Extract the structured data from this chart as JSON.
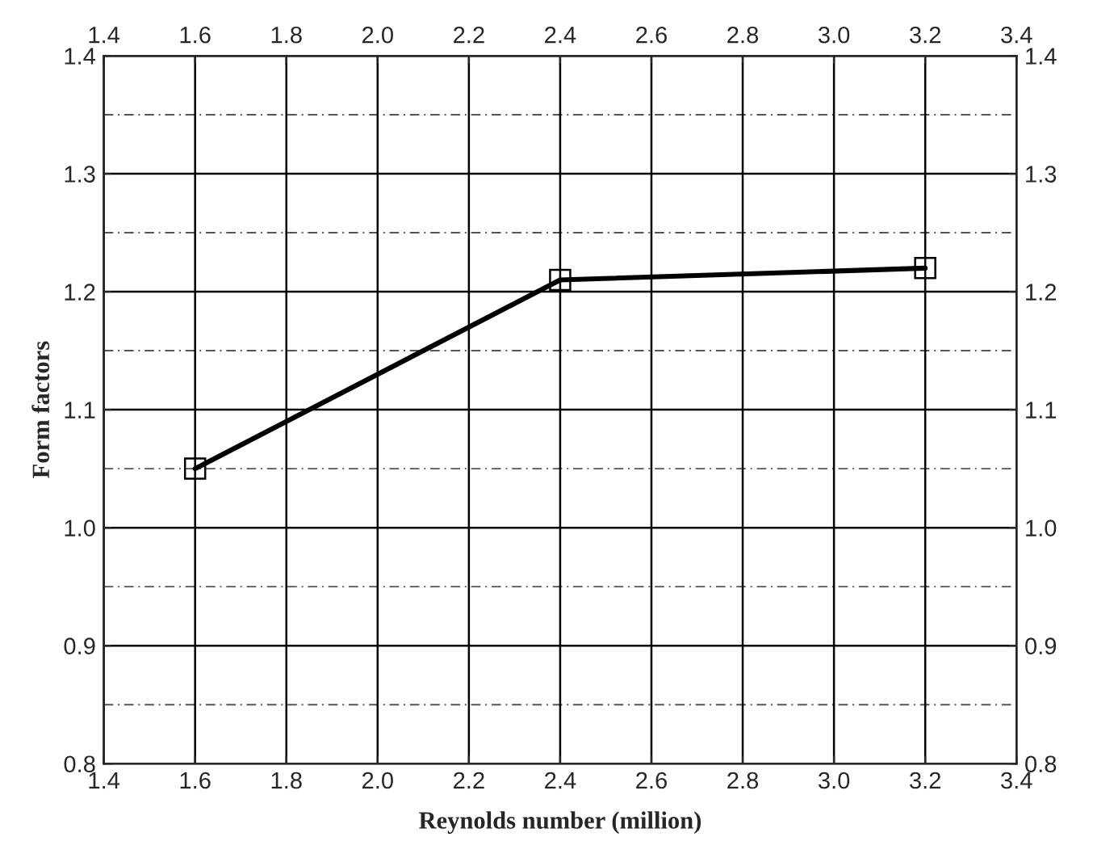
{
  "chart_data": {
    "type": "line",
    "xlabel": "Reynolds number (million)",
    "ylabel": "Form factors",
    "x": [
      1.6,
      2.4,
      3.2
    ],
    "series": [
      {
        "color": "#000000",
        "values": [
          1.05,
          1.21,
          1.22
        ]
      }
    ],
    "xlim": [
      1.4,
      3.4
    ],
    "xticks": [
      1.4,
      1.6,
      1.8,
      {
        "value": 2,
        "label": "2.0"
      },
      2.2,
      2.4,
      2.6,
      2.8,
      {
        "value": 3,
        "label": "3.0"
      },
      3.2,
      3.4
    ],
    "x2lim": [
      1.4,
      3.4
    ],
    "x2ticks": [
      1.4,
      1.6,
      1.8,
      {
        "value": 2,
        "label": "2.0"
      },
      2.2,
      2.4,
      2.6,
      2.8,
      {
        "value": 3,
        "label": "3.0"
      },
      3.2,
      3.4
    ],
    "ylim": [
      0.8,
      1.4
    ],
    "yticks": [
      0.8,
      0.9,
      {
        "value": 1,
        "label": "1.0"
      },
      1.1,
      1.2,
      1.3,
      1.4
    ],
    "y2lim": [
      0.8,
      1.4
    ],
    "y2ticks": [
      0.8,
      0.9,
      {
        "value": 1,
        "label": "1.0"
      },
      1.1,
      1.2,
      1.3,
      1.4
    ],
    "grid": true,
    "marker": "square",
    "line_style": "solid",
    "legend": false
  }
}
